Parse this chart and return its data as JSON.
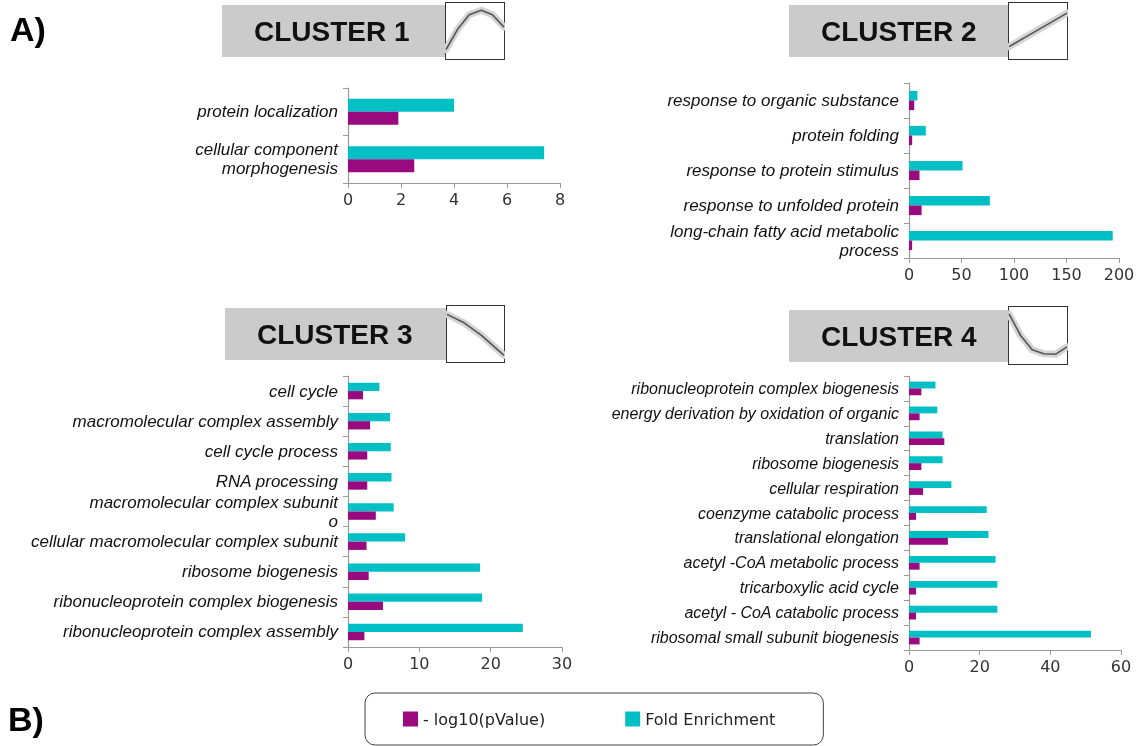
{
  "chart_data": [
    {
      "type": "bar",
      "orientation": "horizontal",
      "title": "CLUSTER 1",
      "annotations": [
        "A)"
      ],
      "categories": [
        "protein localization",
        "cellular component\nmorphogenesis"
      ],
      "series": [
        {
          "color": "#990a7f",
          "values": [
            1.9,
            2.5
          ]
        },
        {
          "color": "#00c0c6",
          "values": [
            4.0,
            7.4
          ]
        }
      ],
      "xlim": [
        0,
        8
      ],
      "xticks": [
        0,
        2,
        4,
        6,
        8
      ]
    },
    {
      "type": "bar",
      "orientation": "horizontal",
      "title": "CLUSTER 2",
      "categories": [
        "response to organic substance",
        "protein folding",
        "response to protein stimulus",
        "response to unfolded protein",
        "long-chain fatty acid metabolic\nprocess"
      ],
      "series": [
        {
          "color": "#990a7f",
          "values": [
            5,
            3,
            10,
            12,
            3
          ]
        },
        {
          "color": "#00c0c6",
          "values": [
            8,
            16,
            51,
            77,
            194
          ]
        }
      ],
      "xlim": [
        0,
        200
      ],
      "xticks": [
        0,
        50,
        100,
        150,
        200
      ]
    },
    {
      "type": "bar",
      "orientation": "horizontal",
      "title": "CLUSTER 3",
      "annotations": [
        "B)"
      ],
      "categories": [
        "cell cycle",
        "macromolecular complex assembly",
        "cell cycle process",
        "RNA processing",
        "macromolecular complex subunit\no",
        "cellular macromolecular complex subunit",
        "ribosome biogenesis",
        "ribonucleoprotein complex biogenesis",
        "ribonucleoprotein complex assembly"
      ],
      "series": [
        {
          "color": "#990a7f",
          "values": [
            2.1,
            3.1,
            2.7,
            2.7,
            3.9,
            2.6,
            2.9,
            4.9,
            2.3
          ]
        },
        {
          "color": "#00c0c6",
          "values": [
            4.4,
            5.9,
            6.0,
            6.1,
            6.4,
            8.0,
            18.5,
            18.8,
            24.5
          ]
        }
      ],
      "xlim": [
        0,
        30
      ],
      "xticks": [
        0,
        10,
        20,
        30
      ]
    },
    {
      "type": "bar",
      "orientation": "horizontal",
      "title": "CLUSTER 4",
      "categories": [
        "ribonucleoprotein complex biogenesis",
        "energy derivation by oxidation of organic",
        "translation",
        "ribosome biogenesis",
        "cellular respiration",
        "coenzyme catabolic process",
        "translational elongation",
        "acetyl -CoA metabolic process",
        "tricarboxylic acid cycle",
        "acetyl - CoA catabolic process",
        "ribosomal small subunit biogenesis"
      ],
      "series": [
        {
          "name": "- log10(pValue)",
          "color": "#990a7f",
          "values": [
            3.5,
            3,
            10,
            3.5,
            4,
            2,
            11,
            3,
            2,
            2,
            3
          ]
        },
        {
          "name": "Fold Enrichment",
          "color": "#00c0c6",
          "values": [
            7.5,
            8,
            9.5,
            9.5,
            12,
            22,
            22.5,
            24.5,
            25,
            25,
            51.5
          ]
        }
      ],
      "xlim": [
        0,
        60
      ],
      "xticks": [
        0,
        20,
        40,
        60
      ],
      "legend": "bottom"
    }
  ]
}
